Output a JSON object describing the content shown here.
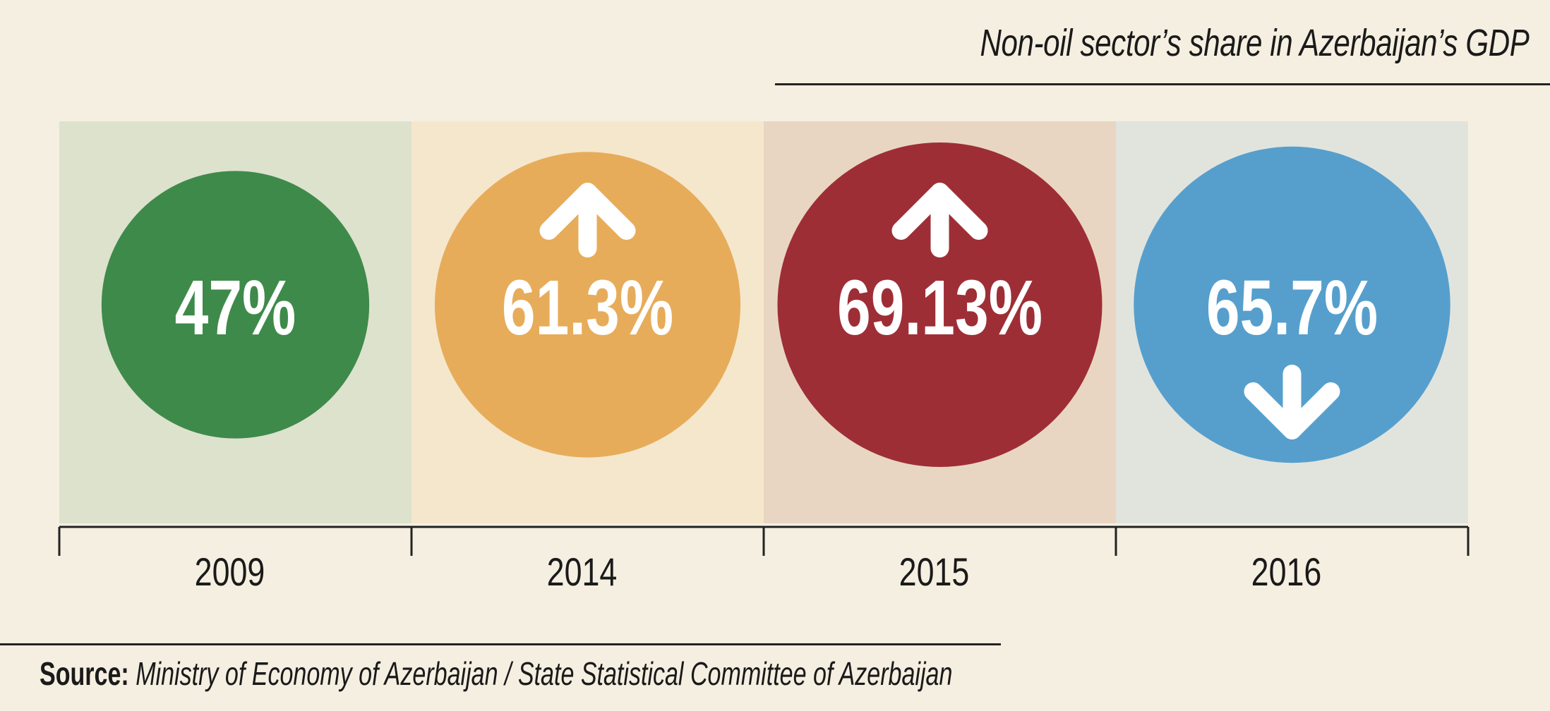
{
  "title": "Non-oil sector’s share in Azerbaijan’s GDP",
  "source": {
    "label": "Source:",
    "text": "Ministry of Economy of Azerbaijan /  State Statistical Committee of Azerbaijan"
  },
  "chart_data": {
    "type": "bar",
    "categories": [
      "2009",
      "2014",
      "2015",
      "2016"
    ],
    "values": [
      47,
      61.3,
      69.13,
      65.7
    ],
    "value_labels": [
      "47%",
      "61.3%",
      "69.13%",
      "65.7%"
    ],
    "trend": [
      "none",
      "up",
      "up",
      "down"
    ],
    "colors": [
      "#3e8a4a",
      "#e7ac5a",
      "#9e2e36",
      "#569fcd"
    ],
    "panel_colors": [
      "#dde2cd",
      "#f5e7cc",
      "#e8d6c3",
      "#e1e4dd"
    ],
    "unit": "%"
  }
}
